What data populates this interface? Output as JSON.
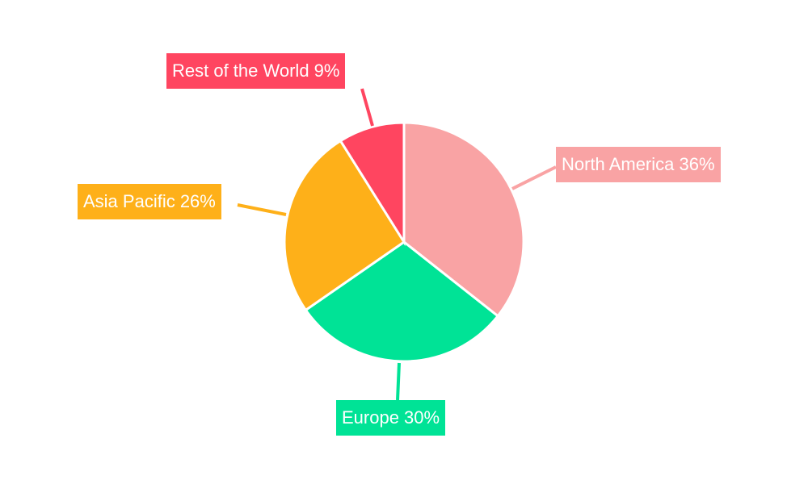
{
  "chart_data": {
    "type": "pie",
    "start_angle": "top",
    "direction": "clockwise",
    "slices": [
      {
        "label": "North America",
        "value": 36,
        "display": "North America 36%",
        "color": "#F9A3A4"
      },
      {
        "label": "Europe",
        "value": 30,
        "display": "Europe 30%",
        "color": "#00E396"
      },
      {
        "label": "Asia Pacific",
        "value": 26,
        "display": "Asia Pacific 26%",
        "color": "#FEB019"
      },
      {
        "label": "Rest of the World",
        "value": 9,
        "display": "Rest of the World 9%",
        "color": "#FF4560"
      }
    ]
  }
}
